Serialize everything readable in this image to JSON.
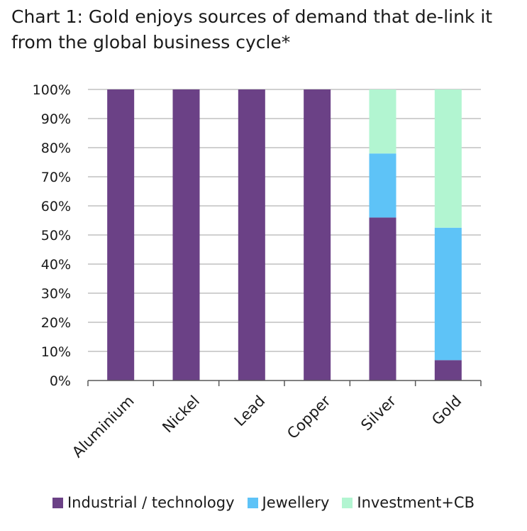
{
  "title": "Chart 1: Gold enjoys sources of demand that de-link it from the global business cycle*",
  "colors": {
    "industrial": "#6b4186",
    "jewellery": "#5ec3f7",
    "investment": "#b2f5d1",
    "grid": "#b3b3b3",
    "axis": "#595959"
  },
  "chart_data": {
    "type": "bar",
    "stacked": true,
    "categories": [
      "Aluminium",
      "Nickel",
      "Lead",
      "Copper",
      "Silver",
      "Gold"
    ],
    "series": [
      {
        "name": "Industrial / technology",
        "values": [
          100,
          100,
          100,
          100,
          56,
          7
        ]
      },
      {
        "name": "Jewellery",
        "values": [
          0,
          0,
          0,
          0,
          22,
          45.5
        ]
      },
      {
        "name": "Investment+CB",
        "values": [
          0,
          0,
          0,
          0,
          22,
          47.5
        ]
      }
    ],
    "yticks": [
      "0%",
      "10%",
      "20%",
      "30%",
      "40%",
      "50%",
      "60%",
      "70%",
      "80%",
      "90%",
      "100%"
    ],
    "ylim": [
      0,
      100
    ],
    "xlabel": "",
    "ylabel": "",
    "grid": true,
    "legend_position": "bottom"
  }
}
